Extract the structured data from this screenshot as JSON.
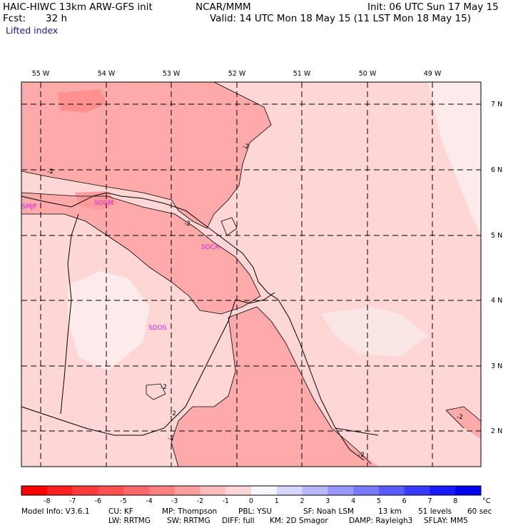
{
  "header": {
    "model": "HAIC-HIWC 13km ARW-GFS init",
    "org": "NCAR/MMM",
    "init": "Init: 06 UTC Sun 17 May 15",
    "fcst_label": "Fcst:",
    "fcst_value": "32 h",
    "valid": "Valid: 14 UTC Mon 18 May 15 (11 LST Mon 18 May 15)",
    "field": "Lifted index"
  },
  "map": {
    "lon_labels": [
      {
        "text": "55 W",
        "lon": -55
      },
      {
        "text": "54 W",
        "lon": -54
      },
      {
        "text": "53 W",
        "lon": -53
      },
      {
        "text": "52 W",
        "lon": -52
      },
      {
        "text": "51 W",
        "lon": -51
      },
      {
        "text": "50 W",
        "lon": -50
      },
      {
        "text": "49 W",
        "lon": -49
      }
    ],
    "lat_labels": [
      {
        "text": "7 N",
        "lat": 7
      },
      {
        "text": "6 N",
        "lat": 6
      },
      {
        "text": "5 N",
        "lat": 5
      },
      {
        "text": "4 N",
        "lat": 4
      },
      {
        "text": "3 N",
        "lat": 3
      },
      {
        "text": "2 N",
        "lat": 2
      }
    ],
    "contour_label": "-2",
    "stations": [
      {
        "id": "SMJP",
        "lon": -55.2,
        "lat": 5.45
      },
      {
        "id": "SOCM",
        "lon": -53.95,
        "lat": 5.5
      },
      {
        "id": "SOCA",
        "lon": -52.35,
        "lat": 4.83
      },
      {
        "id": "SDOS",
        "lon": -53.2,
        "lat": 3.65
      }
    ]
  },
  "colorbar": {
    "ticks": [
      "-8",
      "-7",
      "-6",
      "-5",
      "-4",
      "-3",
      "-2",
      "-1",
      "0",
      "1",
      "2",
      "3",
      "4",
      "5",
      "6",
      "7",
      "8"
    ],
    "unit": "°C",
    "colors": [
      "#ff0000",
      "#ff2020",
      "#ff3a3a",
      "#ff5050",
      "#ff6868",
      "#ff8080",
      "#ff9e9e",
      "#ffbcbc",
      "#ffd6d6",
      "#f6f6ff",
      "#d6d6ff",
      "#b8b8ff",
      "#9898ff",
      "#7a7aff",
      "#5a5aff",
      "#3a3aff",
      "#1a1aff",
      "#0000f0"
    ]
  },
  "footer": {
    "line1": [
      "Model Info: V3.6.1",
      "CU: KF",
      "MP: Thompson",
      "PBL: YSU",
      "SF: Noah LSM",
      "13 km",
      "51 levels",
      "60 sec"
    ],
    "line2": [
      "LW: RRTMG",
      "SW: RRTMG",
      "DIFF: full",
      "KM: 2D Smagor",
      "DAMP: Rayleigh3",
      "SFLAY: MM5"
    ]
  }
}
